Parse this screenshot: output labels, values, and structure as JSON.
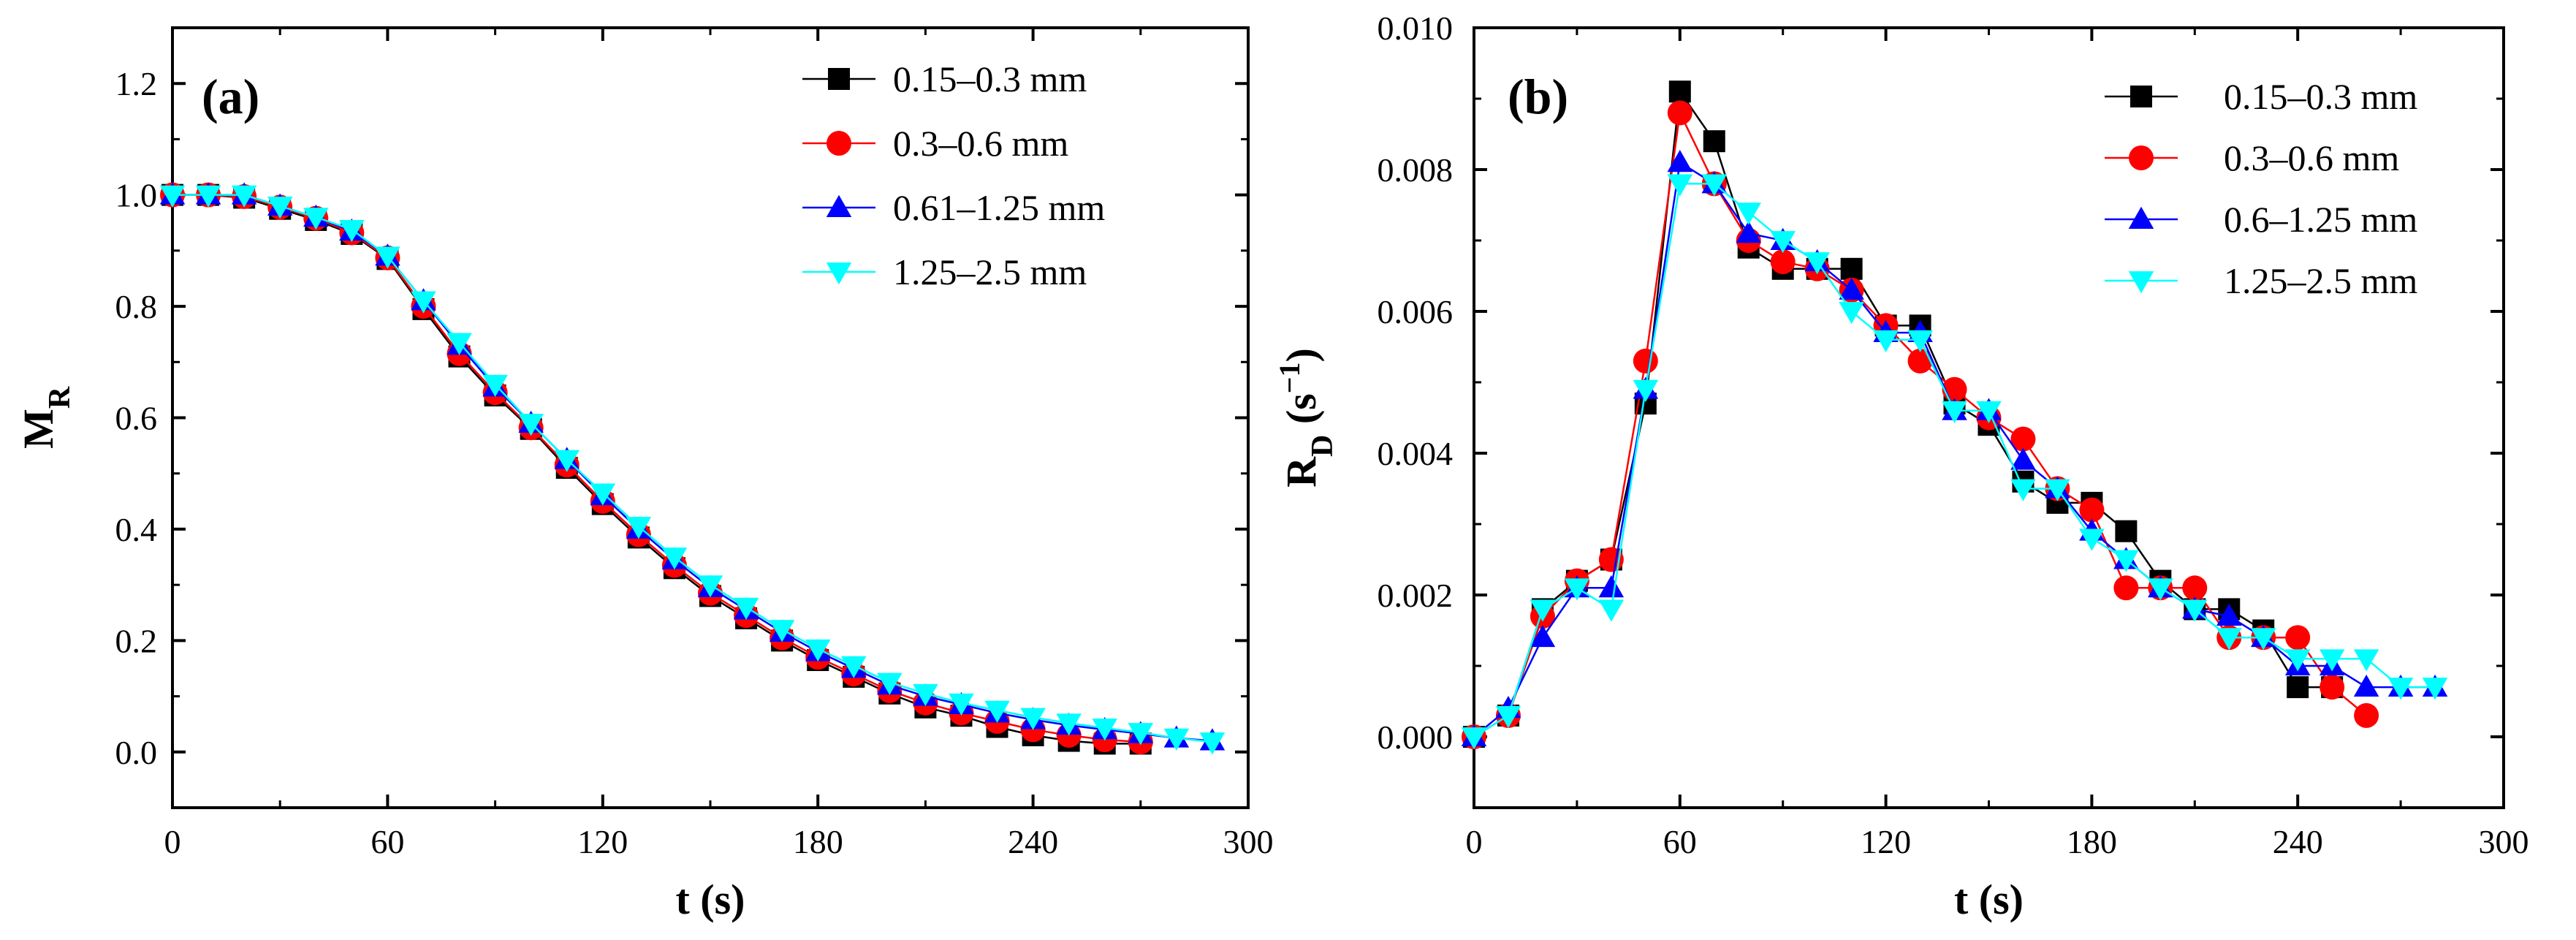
{
  "chart_data": [
    {
      "type": "line",
      "panel": "(a)",
      "xlabel": "t (s)",
      "ylabel_main": "M",
      "ylabel_sub": "R",
      "xlim": [
        0,
        300
      ],
      "ylim": [
        -0.1,
        1.3
      ],
      "xticks": [
        0,
        60,
        120,
        180,
        240,
        300
      ],
      "yticks": [
        0.0,
        0.2,
        0.4,
        0.6,
        0.8,
        1.0,
        1.2
      ],
      "ytick_labels": [
        "0.0",
        "0.2",
        "0.4",
        "0.6",
        "0.8",
        "1.0",
        "1.2"
      ],
      "legend_position": "top-right",
      "series": [
        {
          "name": "0.15–0.3 mm",
          "color": "#000000",
          "marker": "square",
          "x": [
            0,
            10,
            20,
            30,
            40,
            50,
            60,
            70,
            80,
            90,
            100,
            110,
            120,
            130,
            140,
            150,
            160,
            170,
            180,
            190,
            200,
            210,
            220,
            230,
            240,
            250,
            260,
            270
          ],
          "y": [
            1.0,
            1.0,
            0.995,
            0.975,
            0.955,
            0.93,
            0.885,
            0.795,
            0.71,
            0.64,
            0.58,
            0.51,
            0.445,
            0.385,
            0.33,
            0.28,
            0.24,
            0.2,
            0.165,
            0.135,
            0.105,
            0.08,
            0.065,
            0.045,
            0.03,
            0.02,
            0.015,
            0.015
          ]
        },
        {
          "name": "0.3–0.6 mm",
          "color": "#ff0000",
          "marker": "circle",
          "x": [
            0,
            10,
            20,
            30,
            40,
            50,
            60,
            70,
            80,
            90,
            100,
            110,
            120,
            130,
            140,
            150,
            160,
            170,
            180,
            190,
            200,
            210,
            220,
            230,
            240,
            250,
            260,
            270
          ],
          "y": [
            1.0,
            1.0,
            0.997,
            0.978,
            0.958,
            0.932,
            0.887,
            0.8,
            0.715,
            0.645,
            0.582,
            0.515,
            0.45,
            0.39,
            0.335,
            0.285,
            0.245,
            0.205,
            0.17,
            0.14,
            0.11,
            0.088,
            0.07,
            0.055,
            0.04,
            0.03,
            0.022,
            0.018
          ]
        },
        {
          "name": "0.61–1.25 mm",
          "color": "#0000ff",
          "marker": "triangle-up",
          "x": [
            0,
            10,
            20,
            30,
            40,
            50,
            60,
            70,
            80,
            90,
            100,
            110,
            120,
            130,
            140,
            150,
            160,
            170,
            180,
            190,
            200,
            210,
            220,
            230,
            240,
            250,
            260,
            270,
            280,
            290
          ],
          "y": [
            1.0,
            1.0,
            1.0,
            0.98,
            0.96,
            0.935,
            0.89,
            0.81,
            0.73,
            0.655,
            0.59,
            0.525,
            0.46,
            0.4,
            0.345,
            0.295,
            0.255,
            0.215,
            0.18,
            0.15,
            0.12,
            0.1,
            0.085,
            0.07,
            0.058,
            0.048,
            0.04,
            0.033,
            0.025,
            0.02
          ]
        },
        {
          "name": "1.25–2.5 mm",
          "color": "#00ffff",
          "marker": "triangle-down",
          "x": [
            0,
            10,
            20,
            30,
            40,
            50,
            60,
            70,
            80,
            90,
            100,
            110,
            120,
            130,
            140,
            150,
            160,
            170,
            180,
            190,
            200,
            210,
            220,
            230,
            240,
            250,
            260,
            270,
            280,
            290
          ],
          "y": [
            1.0,
            1.0,
            1.0,
            0.98,
            0.96,
            0.938,
            0.89,
            0.81,
            0.735,
            0.66,
            0.59,
            0.525,
            0.465,
            0.405,
            0.35,
            0.3,
            0.26,
            0.22,
            0.185,
            0.155,
            0.125,
            0.105,
            0.088,
            0.075,
            0.062,
            0.052,
            0.043,
            0.035,
            0.025,
            0.018
          ]
        }
      ]
    },
    {
      "type": "line",
      "panel": "(b)",
      "xlabel": "t (s)",
      "ylabel_main": "R",
      "ylabel_sub": "D",
      "ylabel_unit": " (s",
      "ylabel_exp": "−1",
      "ylabel_close": ")",
      "xlim": [
        0,
        300
      ],
      "ylim": [
        -0.001,
        0.01
      ],
      "xticks": [
        0,
        60,
        120,
        180,
        240,
        300
      ],
      "yticks": [
        0.0,
        0.002,
        0.004,
        0.006,
        0.008,
        0.01
      ],
      "ytick_labels": [
        "0.000",
        "0.002",
        "0.004",
        "0.006",
        "0.008",
        "0.010"
      ],
      "legend_position": "top-right",
      "series": [
        {
          "name": "0.15–0.3 mm",
          "color": "#000000",
          "marker": "square",
          "x": [
            0,
            10,
            20,
            30,
            40,
            50,
            60,
            70,
            80,
            90,
            100,
            110,
            120,
            130,
            140,
            150,
            160,
            170,
            180,
            190,
            200,
            210,
            220,
            230,
            240,
            250
          ],
          "y": [
            0.0,
            0.0003,
            0.0018,
            0.0022,
            0.0025,
            0.0047,
            0.0091,
            0.0084,
            0.0069,
            0.0066,
            0.0066,
            0.0066,
            0.0058,
            0.0058,
            0.0047,
            0.0044,
            0.0036,
            0.0033,
            0.0033,
            0.0029,
            0.0022,
            0.0018,
            0.0018,
            0.0015,
            0.0007,
            0.0007
          ]
        },
        {
          "name": "0.3–0.6 mm",
          "color": "#ff0000",
          "marker": "circle",
          "x": [
            0,
            10,
            20,
            30,
            40,
            50,
            60,
            70,
            80,
            90,
            100,
            110,
            120,
            130,
            140,
            150,
            160,
            170,
            180,
            190,
            200,
            210,
            220,
            230,
            240,
            250,
            260
          ],
          "y": [
            0.0,
            0.0003,
            0.0017,
            0.0022,
            0.0025,
            0.0053,
            0.0088,
            0.0078,
            0.007,
            0.0067,
            0.0066,
            0.0063,
            0.0058,
            0.0053,
            0.0049,
            0.0045,
            0.0042,
            0.0035,
            0.0032,
            0.0021,
            0.0021,
            0.0021,
            0.0014,
            0.0014,
            0.0014,
            0.0007,
            0.0003
          ]
        },
        {
          "name": "0.6–1.25 mm",
          "color": "#0000ff",
          "marker": "triangle-up",
          "x": [
            0,
            10,
            20,
            30,
            40,
            50,
            60,
            70,
            80,
            90,
            100,
            110,
            120,
            130,
            140,
            150,
            160,
            170,
            180,
            190,
            200,
            210,
            220,
            230,
            240,
            250,
            260,
            270,
            280
          ],
          "y": [
            0.0,
            0.0004,
            0.0014,
            0.0021,
            0.0021,
            0.0049,
            0.0081,
            0.0078,
            0.0071,
            0.007,
            0.0067,
            0.0063,
            0.0057,
            0.0057,
            0.0046,
            0.0046,
            0.0039,
            0.0035,
            0.0029,
            0.0025,
            0.0021,
            0.0018,
            0.0017,
            0.0014,
            0.001,
            0.001,
            0.0007,
            0.0007,
            0.0007
          ]
        },
        {
          "name": "1.25–2.5 mm",
          "color": "#00ffff",
          "marker": "triangle-down",
          "x": [
            0,
            10,
            20,
            30,
            40,
            50,
            60,
            70,
            80,
            90,
            100,
            110,
            120,
            130,
            140,
            150,
            160,
            170,
            180,
            190,
            200,
            210,
            220,
            230,
            240,
            250,
            260,
            270,
            280
          ],
          "y": [
            0.0,
            0.0003,
            0.0018,
            0.0021,
            0.0018,
            0.0049,
            0.0078,
            0.0078,
            0.0074,
            0.007,
            0.0067,
            0.006,
            0.0056,
            0.0056,
            0.0046,
            0.0046,
            0.0035,
            0.0035,
            0.0028,
            0.0025,
            0.0021,
            0.0018,
            0.0014,
            0.0014,
            0.0011,
            0.0011,
            0.0011,
            0.0007,
            0.0007
          ]
        }
      ]
    }
  ]
}
